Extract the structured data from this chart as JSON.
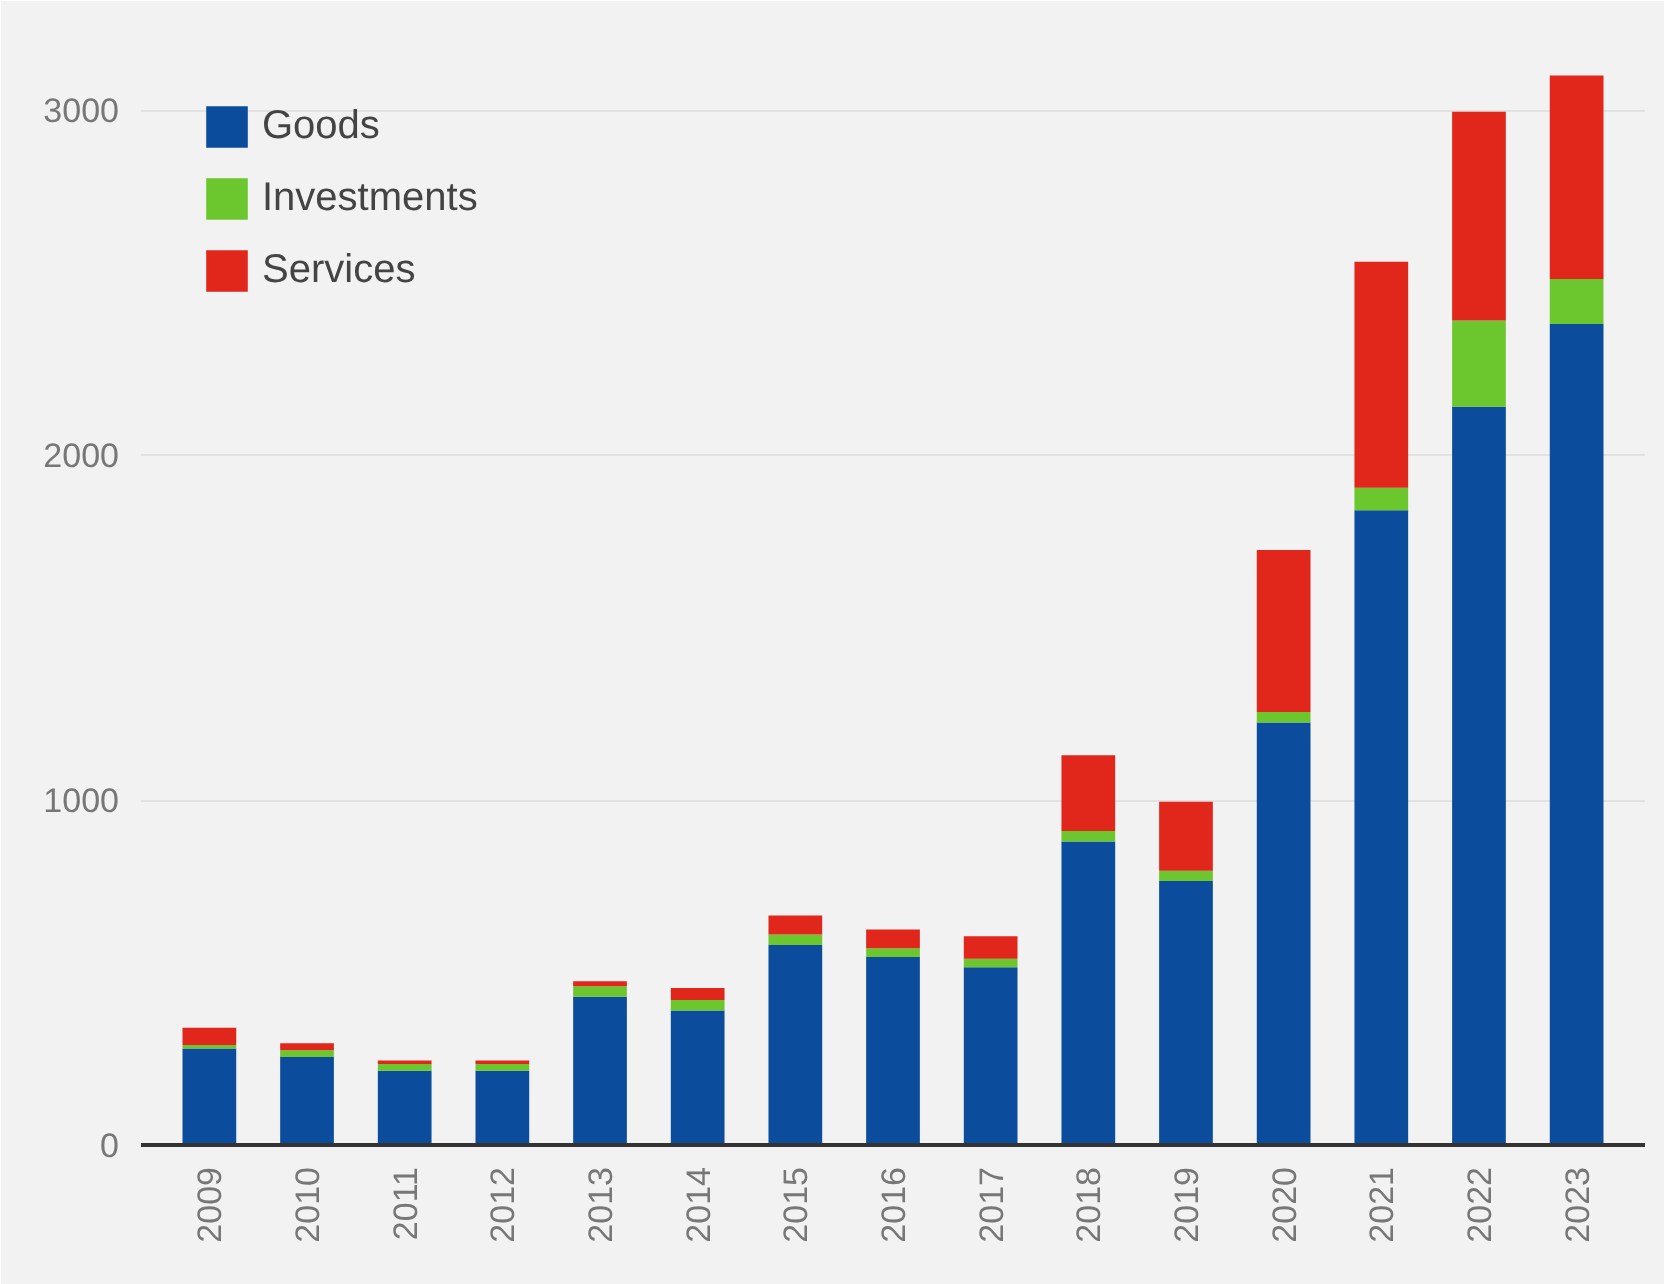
{
  "chart_data": {
    "type": "bar",
    "stacked": true,
    "categories": [
      "2009",
      "2010",
      "2011",
      "2012",
      "2013",
      "2014",
      "2015",
      "2016",
      "2017",
      "2018",
      "2019",
      "2020",
      "2021",
      "2022",
      "2023"
    ],
    "series": [
      {
        "name": "Goods",
        "color": "#0b4c9c",
        "values": [
          280,
          255,
          215,
          215,
          430,
          390,
          580,
          545,
          515,
          880,
          765,
          1225,
          1840,
          2140,
          2380
        ]
      },
      {
        "name": "Investments",
        "color": "#6cc62d",
        "values": [
          10,
          20,
          20,
          20,
          30,
          30,
          30,
          25,
          25,
          30,
          30,
          30,
          65,
          250,
          130
        ]
      },
      {
        "name": "Services",
        "color": "#e1261c",
        "values": [
          50,
          20,
          10,
          10,
          15,
          35,
          55,
          55,
          65,
          220,
          200,
          470,
          655,
          605,
          590
        ]
      }
    ],
    "ylim": [
      0,
      3200
    ],
    "yticks": [
      0,
      1000,
      2000,
      3000
    ],
    "grid": "y",
    "legend": "top left"
  }
}
